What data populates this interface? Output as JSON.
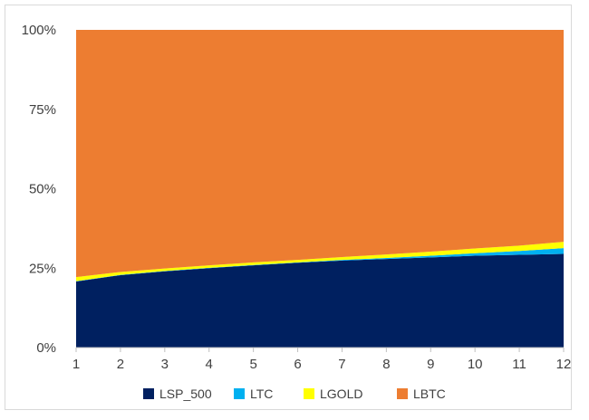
{
  "chart_data": {
    "type": "area",
    "stacked": "percent",
    "title": "",
    "xlabel": "",
    "ylabel": "",
    "x": [
      1,
      2,
      3,
      4,
      5,
      6,
      7,
      8,
      9,
      10,
      11,
      12
    ],
    "x_tick_labels": [
      "1",
      "2",
      "3",
      "4",
      "5",
      "6",
      "7",
      "8",
      "9",
      "10",
      "11",
      "12"
    ],
    "ylim": [
      0,
      100
    ],
    "y_tick_labels": [
      "0%",
      "25%",
      "50%",
      "75%",
      "100%"
    ],
    "grid": false,
    "legend_position": "bottom",
    "series": [
      {
        "name": "LSP_500",
        "color": "#002060",
        "values": [
          20.8,
          22.8,
          24.0,
          25.0,
          25.9,
          26.7,
          27.4,
          27.9,
          28.4,
          28.9,
          29.2,
          29.5
        ]
      },
      {
        "name": "LTC",
        "color": "#00B0F0",
        "values": [
          0.1,
          0.1,
          0.1,
          0.1,
          0.1,
          0.1,
          0.2,
          0.3,
          0.5,
          0.8,
          1.2,
          1.8
        ]
      },
      {
        "name": "LGOLD",
        "color": "#FFFF00",
        "values": [
          1.3,
          0.9,
          0.8,
          0.8,
          0.8,
          0.8,
          0.9,
          1.1,
          1.3,
          1.5,
          1.7,
          2.0
        ]
      },
      {
        "name": "LBTC",
        "color": "#ED7D31",
        "values": [
          77.8,
          76.2,
          75.1,
          74.1,
          73.2,
          72.4,
          71.5,
          70.7,
          69.8,
          68.8,
          67.9,
          66.7
        ]
      }
    ]
  }
}
